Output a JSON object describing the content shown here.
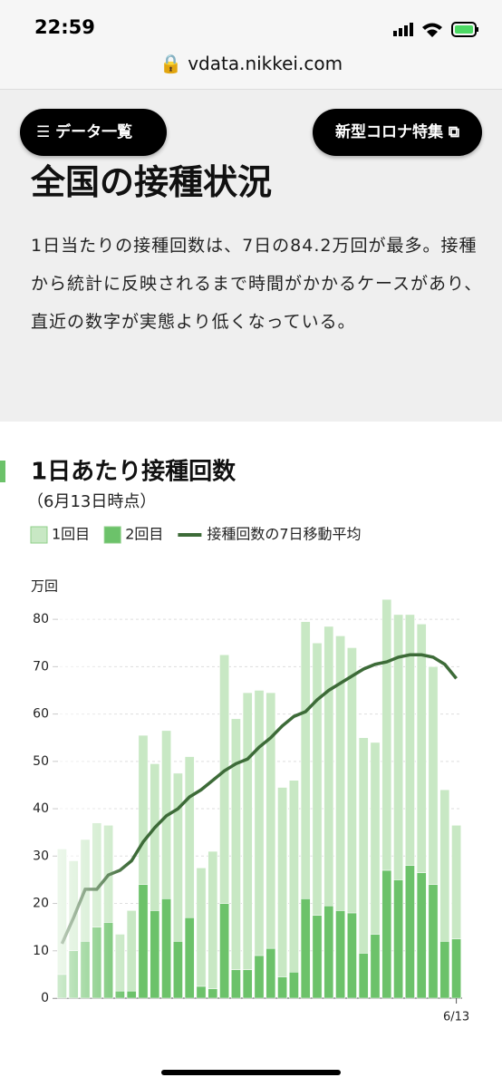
{
  "status_bar": {
    "time": "22:59"
  },
  "browser": {
    "url": "vdata.nikkei.com"
  },
  "nav": {
    "menu": "データ一覧",
    "feature": "新型コロナ特集"
  },
  "article": {
    "title": "全国の接種状況",
    "body": "1日当たりの接種回数は、7日の84.2万回が最多。接種から統計に反映されるまで時間がかかるケースがあり、直近の数字が実態より低くなっている。"
  },
  "chart_data": {
    "type": "bar",
    "stacked": true,
    "title": "1日あたり接種回数",
    "subtitle": "（6月13日時点）",
    "y_label": "万回",
    "categories": [
      null,
      null,
      null,
      null,
      null,
      null,
      null,
      null,
      null,
      null,
      null,
      null,
      null,
      null,
      null,
      null,
      null,
      null,
      null,
      null,
      null,
      null,
      null,
      null,
      null,
      null,
      null,
      null,
      null,
      null,
      null,
      null,
      null,
      null,
      "6/13"
    ],
    "series": [
      {
        "name": "1回目",
        "color": "#c8e8c4",
        "values": [
          26.5,
          19,
          21.5,
          22,
          20.5,
          12,
          17,
          31.5,
          31,
          35.5,
          35.5,
          34,
          25,
          29,
          52.5,
          53,
          58.5,
          56,
          54,
          40,
          40.5,
          58.5,
          57.5,
          59,
          58,
          56,
          45.5,
          40.5,
          57.2,
          56,
          53,
          52.5,
          46,
          32,
          24
        ]
      },
      {
        "name": "2回目",
        "color": "#6cc26a",
        "values": [
          5,
          10,
          12,
          15,
          16,
          1.5,
          1.5,
          24,
          18.5,
          21,
          12,
          17,
          2.5,
          2,
          20,
          6,
          6,
          9,
          10.5,
          4.5,
          5.5,
          21,
          17.5,
          19.5,
          18.5,
          18,
          9.5,
          13.5,
          27,
          25,
          28,
          26.5,
          24,
          12,
          12.5
        ]
      },
      {
        "name": "接種回数の7日移動平均",
        "type": "line",
        "color": "#3d6b38",
        "values": [
          11.5,
          17,
          23,
          23,
          26,
          27,
          29,
          33,
          36,
          38.5,
          40,
          42.5,
          44,
          46,
          48,
          49.5,
          50.5,
          53,
          55,
          57.5,
          59.5,
          60.5,
          63,
          65,
          66.5,
          68,
          69.5,
          70.5,
          71,
          72,
          72.5,
          72.5,
          72,
          70.5,
          67.5
        ]
      }
    ],
    "ylim": [
      0,
      85
    ],
    "yticks": [
      0,
      10,
      20,
      30,
      40,
      50,
      60,
      70,
      80
    ],
    "grid": true
  }
}
